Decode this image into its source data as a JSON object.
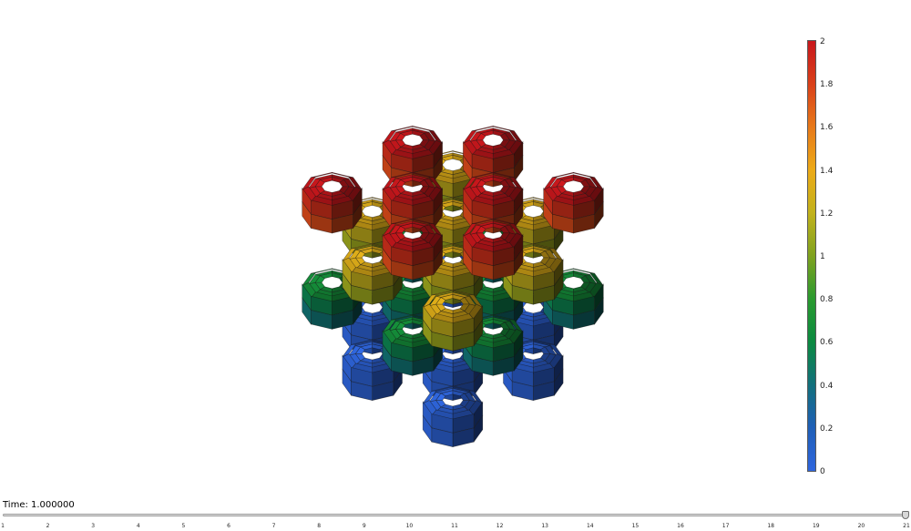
{
  "viewer": {
    "field_colors": {
      "blue": "#2f5fd0",
      "cyan": "#1e7f8f",
      "green": "#128a2e",
      "olive": "#6a9a1a",
      "yellow": "#d8a418",
      "orange": "#d86a18",
      "red": "#c81c1c"
    }
  },
  "colorbar": {
    "min": 0,
    "max": 2,
    "tick_labels": [
      "2",
      "1.8",
      "1.6",
      "1.4",
      "1.2",
      "1",
      "0.8",
      "0.6",
      "0.4",
      "0.2",
      "0"
    ],
    "gradient_stops": [
      "#c8171c",
      "#d9401a",
      "#e7791a",
      "#ecaa17",
      "#c2b21c",
      "#7fa21f",
      "#2a9a2f",
      "#0b8a40",
      "#12707c",
      "#1f5fb7",
      "#2f66de"
    ]
  },
  "time": {
    "label": "Time: 1.000000",
    "slider_min": 1,
    "slider_max": 21,
    "slider_value": 21,
    "tick_labels": [
      "1",
      "2",
      "3",
      "4",
      "5",
      "6",
      "7",
      "8",
      "9",
      "10",
      "11",
      "12",
      "13",
      "14",
      "15",
      "16",
      "17",
      "18",
      "19",
      "20",
      "21"
    ]
  }
}
